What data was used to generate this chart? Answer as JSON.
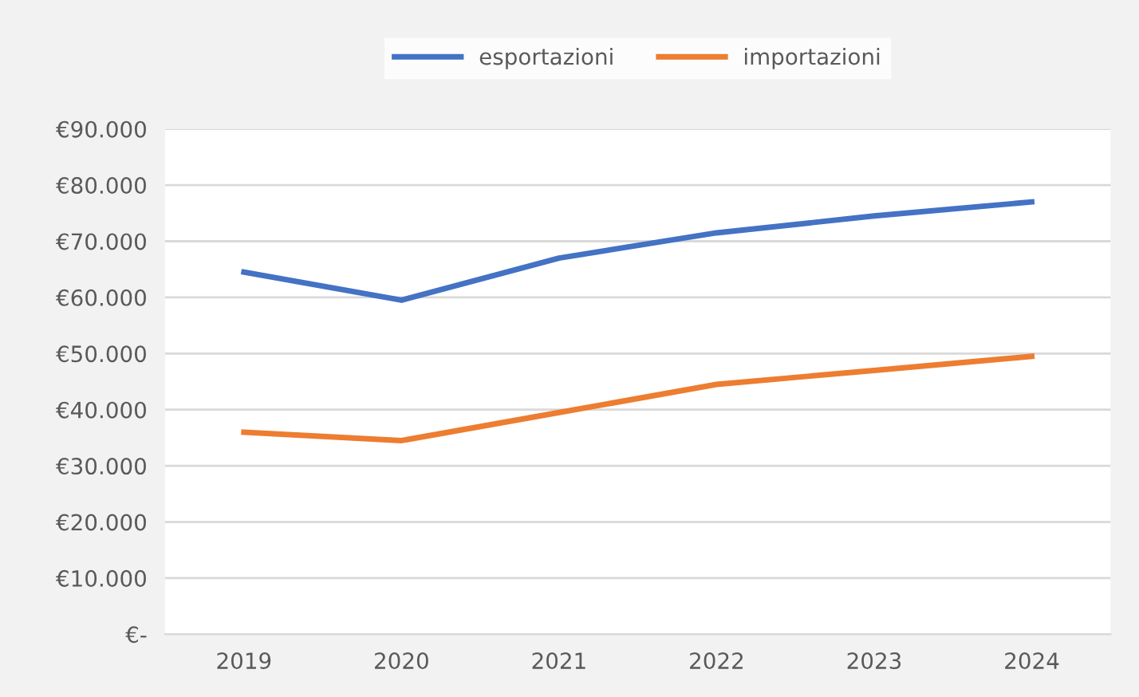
{
  "chart_data": {
    "type": "line",
    "categories": [
      "2019",
      "2020",
      "2021",
      "2022",
      "2023",
      "2024"
    ],
    "series": [
      {
        "name": "esportazioni",
        "color": "#4472c4",
        "values": [
          64500,
          59500,
          67000,
          71500,
          74500,
          77000
        ]
      },
      {
        "name": "importazioni",
        "color": "#ed7d31",
        "values": [
          36000,
          34500,
          39500,
          44500,
          47000,
          49500
        ]
      }
    ],
    "ylim": [
      0,
      90000
    ],
    "yticks": [
      {
        "value": 0,
        "label": "€-"
      },
      {
        "value": 10000,
        "label": "€10.000"
      },
      {
        "value": 20000,
        "label": "€20.000"
      },
      {
        "value": 30000,
        "label": "€30.000"
      },
      {
        "value": 40000,
        "label": "€40.000"
      },
      {
        "value": 50000,
        "label": "€50.000"
      },
      {
        "value": 60000,
        "label": "€60.000"
      },
      {
        "value": 70000,
        "label": "€70.000"
      },
      {
        "value": 80000,
        "label": "€80.000"
      },
      {
        "value": 90000,
        "label": "€90.000"
      }
    ],
    "grid": "y",
    "legend": "top",
    "marker": "none",
    "line_style": "solid"
  }
}
